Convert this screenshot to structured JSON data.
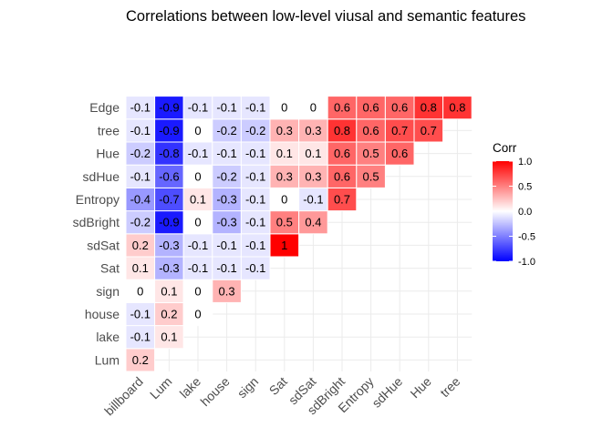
{
  "chart_data": {
    "type": "heatmap",
    "title": "Correlations between low-level viusal and semantic features",
    "x_categories": [
      "billboard",
      "Lum",
      "lake",
      "house",
      "sign",
      "Sat",
      "sdSat",
      "sdBright",
      "Entropy",
      "sdHue",
      "Hue",
      "tree"
    ],
    "y_categories": [
      "Lum",
      "lake",
      "house",
      "sign",
      "Sat",
      "sdSat",
      "sdBright",
      "Entropy",
      "sdHue",
      "Hue",
      "tree",
      "Edge"
    ],
    "cells": [
      {
        "x": "billboard",
        "y": "Lum",
        "value": 0.2,
        "label": "0.2"
      },
      {
        "x": "billboard",
        "y": "lake",
        "value": -0.1,
        "label": "-0.1"
      },
      {
        "x": "Lum",
        "y": "lake",
        "value": 0.1,
        "label": "0.1"
      },
      {
        "x": "billboard",
        "y": "house",
        "value": -0.1,
        "label": "-0.1"
      },
      {
        "x": "Lum",
        "y": "house",
        "value": 0.2,
        "label": "0.2"
      },
      {
        "x": "lake",
        "y": "house",
        "value": 0,
        "label": "0"
      },
      {
        "x": "billboard",
        "y": "sign",
        "value": 0,
        "label": "0"
      },
      {
        "x": "Lum",
        "y": "sign",
        "value": 0.1,
        "label": "0.1"
      },
      {
        "x": "lake",
        "y": "sign",
        "value": 0,
        "label": "0"
      },
      {
        "x": "house",
        "y": "sign",
        "value": 0.3,
        "label": "0.3"
      },
      {
        "x": "billboard",
        "y": "Sat",
        "value": 0.1,
        "label": "0.1"
      },
      {
        "x": "Lum",
        "y": "Sat",
        "value": -0.3,
        "label": "-0.3"
      },
      {
        "x": "lake",
        "y": "Sat",
        "value": -0.1,
        "label": "-0.1"
      },
      {
        "x": "house",
        "y": "Sat",
        "value": -0.1,
        "label": "-0.1"
      },
      {
        "x": "sign",
        "y": "Sat",
        "value": -0.1,
        "label": "-0.1"
      },
      {
        "x": "billboard",
        "y": "sdSat",
        "value": 0.2,
        "label": "0.2"
      },
      {
        "x": "Lum",
        "y": "sdSat",
        "value": -0.3,
        "label": "-0.3"
      },
      {
        "x": "lake",
        "y": "sdSat",
        "value": -0.1,
        "label": "-0.1"
      },
      {
        "x": "house",
        "y": "sdSat",
        "value": -0.1,
        "label": "-0.1"
      },
      {
        "x": "sign",
        "y": "sdSat",
        "value": -0.1,
        "label": "-0.1"
      },
      {
        "x": "Sat",
        "y": "sdSat",
        "value": 1,
        "label": "1"
      },
      {
        "x": "billboard",
        "y": "sdBright",
        "value": -0.2,
        "label": "-0.2"
      },
      {
        "x": "Lum",
        "y": "sdBright",
        "value": -0.9,
        "label": "-0.9"
      },
      {
        "x": "lake",
        "y": "sdBright",
        "value": 0,
        "label": "0"
      },
      {
        "x": "house",
        "y": "sdBright",
        "value": -0.3,
        "label": "-0.3"
      },
      {
        "x": "sign",
        "y": "sdBright",
        "value": -0.1,
        "label": "-0.1"
      },
      {
        "x": "Sat",
        "y": "sdBright",
        "value": 0.5,
        "label": "0.5"
      },
      {
        "x": "sdSat",
        "y": "sdBright",
        "value": 0.4,
        "label": "0.4"
      },
      {
        "x": "billboard",
        "y": "Entropy",
        "value": -0.4,
        "label": "-0.4"
      },
      {
        "x": "Lum",
        "y": "Entropy",
        "value": -0.7,
        "label": "-0.7"
      },
      {
        "x": "lake",
        "y": "Entropy",
        "value": 0.1,
        "label": "0.1"
      },
      {
        "x": "house",
        "y": "Entropy",
        "value": -0.3,
        "label": "-0.3"
      },
      {
        "x": "sign",
        "y": "Entropy",
        "value": -0.1,
        "label": "-0.1"
      },
      {
        "x": "Sat",
        "y": "Entropy",
        "value": 0,
        "label": "0"
      },
      {
        "x": "sdSat",
        "y": "Entropy",
        "value": -0.1,
        "label": "-0.1"
      },
      {
        "x": "sdBright",
        "y": "Entropy",
        "value": 0.7,
        "label": "0.7"
      },
      {
        "x": "billboard",
        "y": "sdHue",
        "value": -0.1,
        "label": "-0.1"
      },
      {
        "x": "Lum",
        "y": "sdHue",
        "value": -0.6,
        "label": "-0.6"
      },
      {
        "x": "lake",
        "y": "sdHue",
        "value": 0,
        "label": "0"
      },
      {
        "x": "house",
        "y": "sdHue",
        "value": -0.2,
        "label": "-0.2"
      },
      {
        "x": "sign",
        "y": "sdHue",
        "value": -0.1,
        "label": "-0.1"
      },
      {
        "x": "Sat",
        "y": "sdHue",
        "value": 0.3,
        "label": "0.3"
      },
      {
        "x": "sdSat",
        "y": "sdHue",
        "value": 0.3,
        "label": "0.3"
      },
      {
        "x": "sdBright",
        "y": "sdHue",
        "value": 0.6,
        "label": "0.6"
      },
      {
        "x": "Entropy",
        "y": "sdHue",
        "value": 0.5,
        "label": "0.5"
      },
      {
        "x": "billboard",
        "y": "Hue",
        "value": -0.2,
        "label": "-0.2"
      },
      {
        "x": "Lum",
        "y": "Hue",
        "value": -0.8,
        "label": "-0.8"
      },
      {
        "x": "lake",
        "y": "Hue",
        "value": -0.1,
        "label": "-0.1"
      },
      {
        "x": "house",
        "y": "Hue",
        "value": -0.1,
        "label": "-0.1"
      },
      {
        "x": "sign",
        "y": "Hue",
        "value": -0.1,
        "label": "-0.1"
      },
      {
        "x": "Sat",
        "y": "Hue",
        "value": 0.1,
        "label": "0.1"
      },
      {
        "x": "sdSat",
        "y": "Hue",
        "value": 0.1,
        "label": "0.1"
      },
      {
        "x": "sdBright",
        "y": "Hue",
        "value": 0.6,
        "label": "0.6"
      },
      {
        "x": "Entropy",
        "y": "Hue",
        "value": 0.5,
        "label": "0.5"
      },
      {
        "x": "sdHue",
        "y": "Hue",
        "value": 0.6,
        "label": "0.6"
      },
      {
        "x": "billboard",
        "y": "tree",
        "value": -0.1,
        "label": "-0.1"
      },
      {
        "x": "Lum",
        "y": "tree",
        "value": -0.9,
        "label": "-0.9"
      },
      {
        "x": "lake",
        "y": "tree",
        "value": 0,
        "label": "0"
      },
      {
        "x": "house",
        "y": "tree",
        "value": -0.2,
        "label": "-0.2"
      },
      {
        "x": "sign",
        "y": "tree",
        "value": -0.2,
        "label": "-0.2"
      },
      {
        "x": "Sat",
        "y": "tree",
        "value": 0.3,
        "label": "0.3"
      },
      {
        "x": "sdSat",
        "y": "tree",
        "value": 0.3,
        "label": "0.3"
      },
      {
        "x": "sdBright",
        "y": "tree",
        "value": 0.8,
        "label": "0.8"
      },
      {
        "x": "Entropy",
        "y": "tree",
        "value": 0.6,
        "label": "0.6"
      },
      {
        "x": "sdHue",
        "y": "tree",
        "value": 0.7,
        "label": "0.7"
      },
      {
        "x": "Hue",
        "y": "tree",
        "value": 0.7,
        "label": "0.7"
      },
      {
        "x": "billboard",
        "y": "Edge",
        "value": -0.1,
        "label": "-0.1"
      },
      {
        "x": "Lum",
        "y": "Edge",
        "value": -0.9,
        "label": "-0.9"
      },
      {
        "x": "lake",
        "y": "Edge",
        "value": -0.1,
        "label": "-0.1"
      },
      {
        "x": "house",
        "y": "Edge",
        "value": -0.1,
        "label": "-0.1"
      },
      {
        "x": "sign",
        "y": "Edge",
        "value": -0.1,
        "label": "-0.1"
      },
      {
        "x": "Sat",
        "y": "Edge",
        "value": 0,
        "label": "0"
      },
      {
        "x": "sdSat",
        "y": "Edge",
        "value": 0,
        "label": "0"
      },
      {
        "x": "sdBright",
        "y": "Edge",
        "value": 0.6,
        "label": "0.6"
      },
      {
        "x": "Entropy",
        "y": "Edge",
        "value": 0.6,
        "label": "0.6"
      },
      {
        "x": "sdHue",
        "y": "Edge",
        "value": 0.6,
        "label": "0.6"
      },
      {
        "x": "Hue",
        "y": "Edge",
        "value": 0.8,
        "label": "0.8"
      },
      {
        "x": "tree",
        "y": "Edge",
        "value": 0.8,
        "label": "0.8"
      }
    ],
    "legend": {
      "title": "Corr",
      "position": "right",
      "range": [
        -1,
        1
      ],
      "ticks": [
        1.0,
        0.5,
        0.0,
        -0.5,
        -1.0
      ],
      "tick_labels": [
        "1.0",
        "0.5",
        "0.0",
        "-0.5",
        "-1.0"
      ]
    },
    "colors": {
      "low": "#0000ff",
      "mid": "#ffffff",
      "high": "#ff0000"
    },
    "grid": true
  }
}
